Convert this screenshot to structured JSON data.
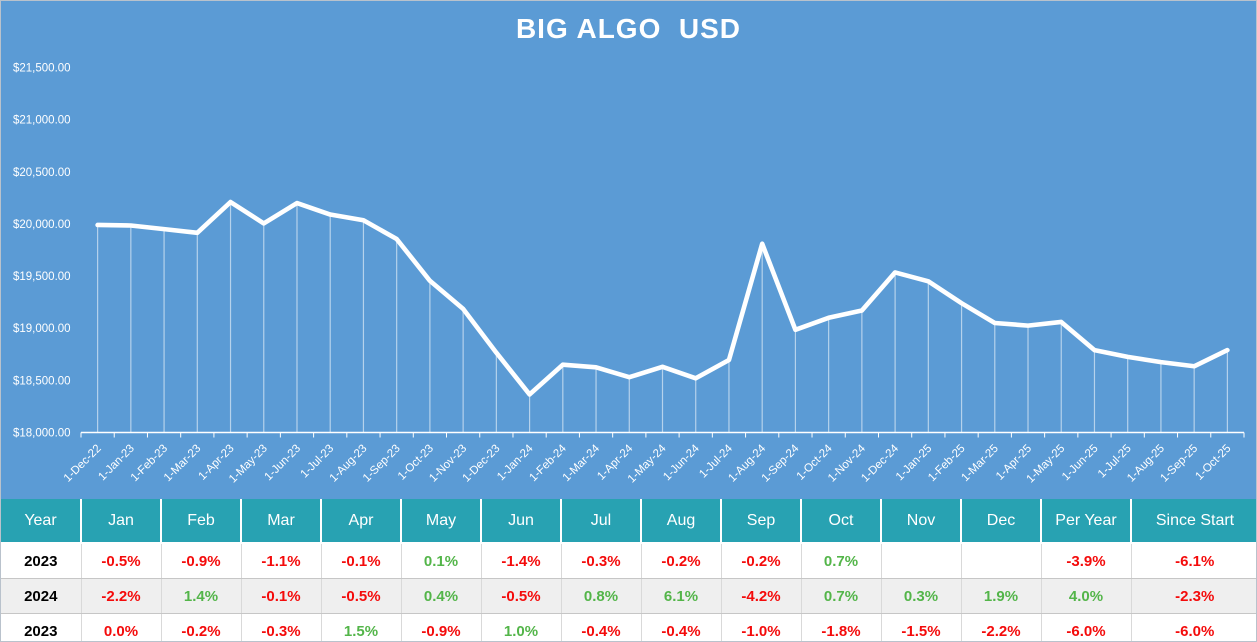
{
  "chart": {
    "title": "BIG ALGO  USD",
    "background": "#5B9BD5",
    "line_color": "#FFFFFF"
  },
  "chart_data": {
    "type": "line",
    "title": "BIG ALGO USD",
    "x": [
      "1-Dec-22",
      "1-Jan-23",
      "1-Feb-23",
      "1-Mar-23",
      "1-Apr-23",
      "1-May-23",
      "1-Jun-23",
      "1-Jul-23",
      "1-Aug-23",
      "1-Sep-23",
      "1-Oct-23",
      "1-Nov-23",
      "1-Dec-23",
      "1-Jan-24",
      "1-Feb-24",
      "1-Mar-24",
      "1-Apr-24",
      "1-May-24",
      "1-Jun-24",
      "1-Jul-24",
      "1-Aug-24",
      "1-Sep-24",
      "1-Oct-24",
      "1-Nov-24",
      "1-Dec-24",
      "1-Jan-25",
      "1-Feb-25",
      "1-Mar-25",
      "1-Apr-25",
      "1-May-25",
      "1-Jun-25",
      "1-Jul-25",
      "1-Aug-25",
      "1-Sep-25",
      "1-Oct-25"
    ],
    "values": [
      19990,
      19985,
      19950,
      19915,
      20210,
      20005,
      20200,
      20090,
      20035,
      19855,
      19455,
      19185,
      18765,
      18365,
      18650,
      18625,
      18530,
      18630,
      18520,
      18695,
      19810,
      18985,
      19100,
      19170,
      19535,
      19450,
      19240,
      19050,
      19025,
      19060,
      18790,
      18725,
      18675,
      18635,
      18790
    ],
    "ylim": [
      18000,
      21500
    ],
    "ytick_step": 500,
    "ytick_labels": [
      "$18,000.00",
      "$18,500.00",
      "$19,000.00",
      "$19,500.00",
      "$20,000.00",
      "$20,500.00",
      "$21,000.00",
      "$21,500.00"
    ],
    "grid": "vertical-drop-lines-only",
    "legend": "none"
  },
  "table": {
    "headers": [
      "Year",
      "Jan",
      "Feb",
      "Mar",
      "Apr",
      "May",
      "Jun",
      "Jul",
      "Aug",
      "Sep",
      "Oct",
      "Nov",
      "Dec",
      "Per Year",
      "Since Start"
    ],
    "rows": [
      {
        "year": "2023",
        "cells": [
          "-0.5%",
          "-0.9%",
          "-1.1%",
          "-0.1%",
          "0.1%",
          "-1.4%",
          "-0.3%",
          "-0.2%",
          "-0.2%",
          "0.7%",
          "",
          "",
          "-3.9%",
          "-6.1%"
        ]
      },
      {
        "year": "2024",
        "cells": [
          "-2.2%",
          "1.4%",
          "-0.1%",
          "-0.5%",
          "0.4%",
          "-0.5%",
          "0.8%",
          "6.1%",
          "-4.2%",
          "0.7%",
          "0.3%",
          "1.9%",
          "4.0%",
          "-2.3%"
        ]
      },
      {
        "year": "2023",
        "cells": [
          "0.0%",
          "-0.2%",
          "-0.3%",
          "1.5%",
          "-0.9%",
          "1.0%",
          "-0.4%",
          "-0.4%",
          "-1.0%",
          "-1.8%",
          "-1.5%",
          "-2.2%",
          "-6.0%",
          "-6.0%"
        ]
      }
    ]
  },
  "colors": {
    "chart_bg": "#5B9BD5",
    "header_bg": "#28A2B2",
    "positive": "#53B549",
    "negative": "#F40B0B"
  }
}
